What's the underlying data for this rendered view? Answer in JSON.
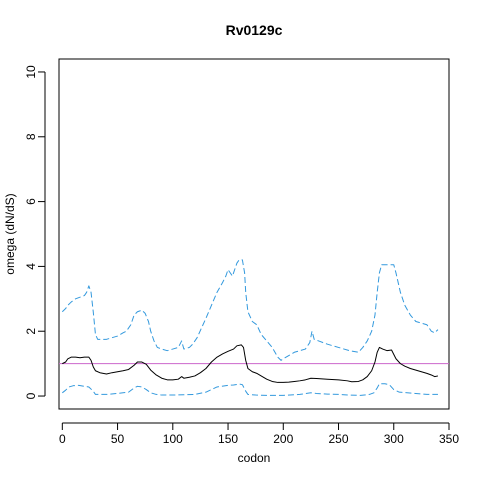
{
  "chart_data": {
    "type": "line",
    "title": "Rv0129c",
    "xlabel": "codon",
    "ylabel": "omega (dN/dS)",
    "xlim": [
      -3,
      350
    ],
    "ylim": [
      -0.4,
      10.4
    ],
    "x_ticks": [
      0,
      50,
      100,
      150,
      200,
      250,
      300,
      350
    ],
    "y_ticks": [
      0,
      2,
      4,
      6,
      8,
      10
    ],
    "grid": false,
    "reference_line": {
      "y": 1,
      "color": "#cc66cc"
    },
    "series": [
      {
        "role": "upper",
        "color": "#3399dd",
        "style": "dashed",
        "points": [
          [
            0,
            2.6
          ],
          [
            3,
            2.7
          ],
          [
            5,
            2.8
          ],
          [
            8,
            2.9
          ],
          [
            12,
            3.0
          ],
          [
            16,
            3.05
          ],
          [
            20,
            3.1
          ],
          [
            22,
            3.2
          ],
          [
            24,
            3.4
          ],
          [
            26,
            3.2
          ],
          [
            28,
            2.6
          ],
          [
            30,
            1.9
          ],
          [
            32,
            1.75
          ],
          [
            40,
            1.75
          ],
          [
            45,
            1.8
          ],
          [
            50,
            1.85
          ],
          [
            55,
            1.95
          ],
          [
            58,
            2.0
          ],
          [
            62,
            2.2
          ],
          [
            65,
            2.5
          ],
          [
            68,
            2.6
          ],
          [
            72,
            2.65
          ],
          [
            75,
            2.55
          ],
          [
            78,
            2.3
          ],
          [
            80,
            2.0
          ],
          [
            83,
            1.7
          ],
          [
            86,
            1.5
          ],
          [
            90,
            1.45
          ],
          [
            95,
            1.4
          ],
          [
            100,
            1.45
          ],
          [
            105,
            1.5
          ],
          [
            108,
            1.7
          ],
          [
            110,
            1.45
          ],
          [
            115,
            1.5
          ],
          [
            118,
            1.6
          ],
          [
            122,
            1.8
          ],
          [
            126,
            2.1
          ],
          [
            130,
            2.4
          ],
          [
            135,
            2.8
          ],
          [
            140,
            3.2
          ],
          [
            145,
            3.5
          ],
          [
            148,
            3.7
          ],
          [
            150,
            3.9
          ],
          [
            152,
            3.8
          ],
          [
            154,
            3.7
          ],
          [
            156,
            3.9
          ],
          [
            158,
            4.1
          ],
          [
            160,
            4.2
          ],
          [
            163,
            4.2
          ],
          [
            165,
            3.8
          ],
          [
            166,
            3.2
          ],
          [
            168,
            2.6
          ],
          [
            172,
            2.3
          ],
          [
            176,
            2.2
          ],
          [
            180,
            1.9
          ],
          [
            185,
            1.7
          ],
          [
            190,
            1.5
          ],
          [
            195,
            1.2
          ],
          [
            198,
            1.1
          ],
          [
            200,
            1.15
          ],
          [
            205,
            1.25
          ],
          [
            210,
            1.35
          ],
          [
            215,
            1.4
          ],
          [
            220,
            1.45
          ],
          [
            224,
            1.65
          ],
          [
            226,
            2.0
          ],
          [
            228,
            1.75
          ],
          [
            232,
            1.7
          ],
          [
            240,
            1.6
          ],
          [
            250,
            1.5
          ],
          [
            260,
            1.4
          ],
          [
            268,
            1.35
          ],
          [
            272,
            1.5
          ],
          [
            276,
            1.7
          ],
          [
            280,
            2.0
          ],
          [
            283,
            2.5
          ],
          [
            285,
            3.2
          ],
          [
            287,
            3.8
          ],
          [
            289,
            4.05
          ],
          [
            300,
            4.05
          ],
          [
            302,
            3.8
          ],
          [
            306,
            3.2
          ],
          [
            310,
            2.8
          ],
          [
            315,
            2.5
          ],
          [
            320,
            2.3
          ],
          [
            325,
            2.25
          ],
          [
            330,
            2.2
          ],
          [
            334,
            2.0
          ],
          [
            337,
            1.95
          ],
          [
            340,
            2.05
          ]
        ]
      },
      {
        "role": "estimate",
        "color": "#000000",
        "style": "solid",
        "points": [
          [
            0,
            1.0
          ],
          [
            3,
            1.05
          ],
          [
            5,
            1.15
          ],
          [
            8,
            1.2
          ],
          [
            12,
            1.2
          ],
          [
            16,
            1.18
          ],
          [
            20,
            1.2
          ],
          [
            24,
            1.2
          ],
          [
            26,
            1.1
          ],
          [
            28,
            0.9
          ],
          [
            30,
            0.78
          ],
          [
            34,
            0.72
          ],
          [
            40,
            0.68
          ],
          [
            45,
            0.72
          ],
          [
            50,
            0.75
          ],
          [
            55,
            0.78
          ],
          [
            60,
            0.82
          ],
          [
            65,
            0.95
          ],
          [
            68,
            1.05
          ],
          [
            72,
            1.05
          ],
          [
            76,
            0.98
          ],
          [
            80,
            0.8
          ],
          [
            85,
            0.65
          ],
          [
            90,
            0.55
          ],
          [
            95,
            0.5
          ],
          [
            100,
            0.5
          ],
          [
            105,
            0.52
          ],
          [
            108,
            0.6
          ],
          [
            110,
            0.55
          ],
          [
            115,
            0.58
          ],
          [
            120,
            0.62
          ],
          [
            125,
            0.72
          ],
          [
            130,
            0.85
          ],
          [
            135,
            1.05
          ],
          [
            140,
            1.2
          ],
          [
            145,
            1.3
          ],
          [
            150,
            1.38
          ],
          [
            155,
            1.45
          ],
          [
            158,
            1.55
          ],
          [
            162,
            1.58
          ],
          [
            164,
            1.5
          ],
          [
            166,
            1.1
          ],
          [
            168,
            0.85
          ],
          [
            172,
            0.75
          ],
          [
            176,
            0.7
          ],
          [
            180,
            0.62
          ],
          [
            185,
            0.52
          ],
          [
            190,
            0.45
          ],
          [
            195,
            0.42
          ],
          [
            200,
            0.42
          ],
          [
            205,
            0.43
          ],
          [
            210,
            0.45
          ],
          [
            215,
            0.47
          ],
          [
            220,
            0.5
          ],
          [
            225,
            0.55
          ],
          [
            230,
            0.54
          ],
          [
            240,
            0.52
          ],
          [
            250,
            0.5
          ],
          [
            258,
            0.47
          ],
          [
            262,
            0.44
          ],
          [
            268,
            0.45
          ],
          [
            272,
            0.5
          ],
          [
            276,
            0.6
          ],
          [
            280,
            0.78
          ],
          [
            283,
            1.05
          ],
          [
            285,
            1.35
          ],
          [
            287,
            1.5
          ],
          [
            290,
            1.45
          ],
          [
            294,
            1.4
          ],
          [
            298,
            1.42
          ],
          [
            302,
            1.15
          ],
          [
            306,
            1.0
          ],
          [
            310,
            0.92
          ],
          [
            315,
            0.85
          ],
          [
            320,
            0.8
          ],
          [
            325,
            0.75
          ],
          [
            330,
            0.7
          ],
          [
            334,
            0.65
          ],
          [
            337,
            0.6
          ],
          [
            340,
            0.62
          ]
        ]
      },
      {
        "role": "lower",
        "color": "#3399dd",
        "style": "dashed",
        "points": [
          [
            0,
            0.1
          ],
          [
            3,
            0.18
          ],
          [
            6,
            0.28
          ],
          [
            10,
            0.32
          ],
          [
            15,
            0.33
          ],
          [
            20,
            0.3
          ],
          [
            24,
            0.28
          ],
          [
            28,
            0.15
          ],
          [
            30,
            0.05
          ],
          [
            40,
            0.05
          ],
          [
            50,
            0.08
          ],
          [
            55,
            0.1
          ],
          [
            60,
            0.12
          ],
          [
            65,
            0.25
          ],
          [
            68,
            0.3
          ],
          [
            72,
            0.28
          ],
          [
            76,
            0.2
          ],
          [
            80,
            0.1
          ],
          [
            85,
            0.05
          ],
          [
            90,
            0.03
          ],
          [
            100,
            0.03
          ],
          [
            110,
            0.04
          ],
          [
            120,
            0.05
          ],
          [
            130,
            0.12
          ],
          [
            135,
            0.2
          ],
          [
            140,
            0.28
          ],
          [
            150,
            0.33
          ],
          [
            155,
            0.34
          ],
          [
            160,
            0.37
          ],
          [
            163,
            0.35
          ],
          [
            166,
            0.15
          ],
          [
            168,
            0.05
          ],
          [
            175,
            0.03
          ],
          [
            185,
            0.02
          ],
          [
            200,
            0.02
          ],
          [
            215,
            0.05
          ],
          [
            225,
            0.1
          ],
          [
            230,
            0.08
          ],
          [
            240,
            0.06
          ],
          [
            250,
            0.05
          ],
          [
            260,
            0.03
          ],
          [
            270,
            0.02
          ],
          [
            278,
            0.05
          ],
          [
            282,
            0.1
          ],
          [
            285,
            0.25
          ],
          [
            287,
            0.38
          ],
          [
            292,
            0.38
          ],
          [
            296,
            0.35
          ],
          [
            300,
            0.2
          ],
          [
            305,
            0.12
          ],
          [
            312,
            0.1
          ],
          [
            320,
            0.08
          ],
          [
            330,
            0.05
          ],
          [
            340,
            0.05
          ]
        ]
      }
    ]
  }
}
